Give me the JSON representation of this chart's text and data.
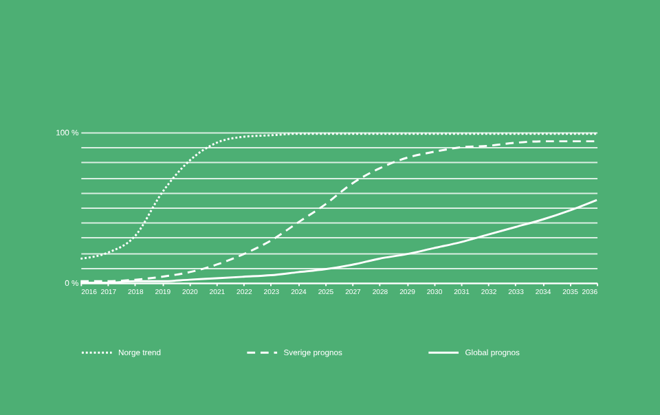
{
  "chart_data": {
    "type": "line",
    "categories": [
      "2016",
      "2017",
      "2018",
      "2019",
      "2020",
      "2021",
      "2022",
      "2023",
      "2024",
      "2025",
      "2027",
      "2028",
      "2029",
      "2030",
      "2031",
      "2032",
      "2033",
      "2034",
      "2035",
      "2036"
    ],
    "series": [
      {
        "name": "Norge trend",
        "color": "#ffffff",
        "line_style": "dotted",
        "values": [
          16,
          20,
          31,
          60,
          81,
          93,
          97,
          98,
          99,
          99,
          99,
          99,
          99,
          99,
          99,
          99,
          99,
          99,
          99,
          99
        ]
      },
      {
        "name": "Sverige prognos",
        "color": "#ffffff",
        "line_style": "dashed",
        "values": [
          1,
          1,
          2,
          4,
          7,
          12,
          19,
          28,
          40,
          52,
          66,
          76,
          83,
          87,
          90,
          91,
          93,
          94,
          94,
          94
        ]
      },
      {
        "name": "Global prognos",
        "color": "#ffffff",
        "line_style": "solid",
        "values": [
          0,
          0,
          1,
          1,
          2,
          3,
          4,
          5,
          7,
          9,
          12,
          16,
          19,
          23,
          27,
          32,
          37,
          42,
          48,
          55
        ]
      }
    ],
    "ylim": [
      0,
      100
    ],
    "yticks": [
      {
        "value": 0,
        "label": "0 %"
      },
      {
        "value": 10,
        "label": null
      },
      {
        "value": 20,
        "label": null
      },
      {
        "value": 30,
        "label": null
      },
      {
        "value": 40,
        "label": null
      },
      {
        "value": 50,
        "label": null
      },
      {
        "value": 60,
        "label": null
      },
      {
        "value": 70,
        "label": null
      },
      {
        "value": 80,
        "label": null
      },
      {
        "value": 90,
        "label": null
      },
      {
        "value": 100,
        "label": "100 %"
      }
    ],
    "grid": "y",
    "legend": "bottom",
    "marker": "none"
  }
}
